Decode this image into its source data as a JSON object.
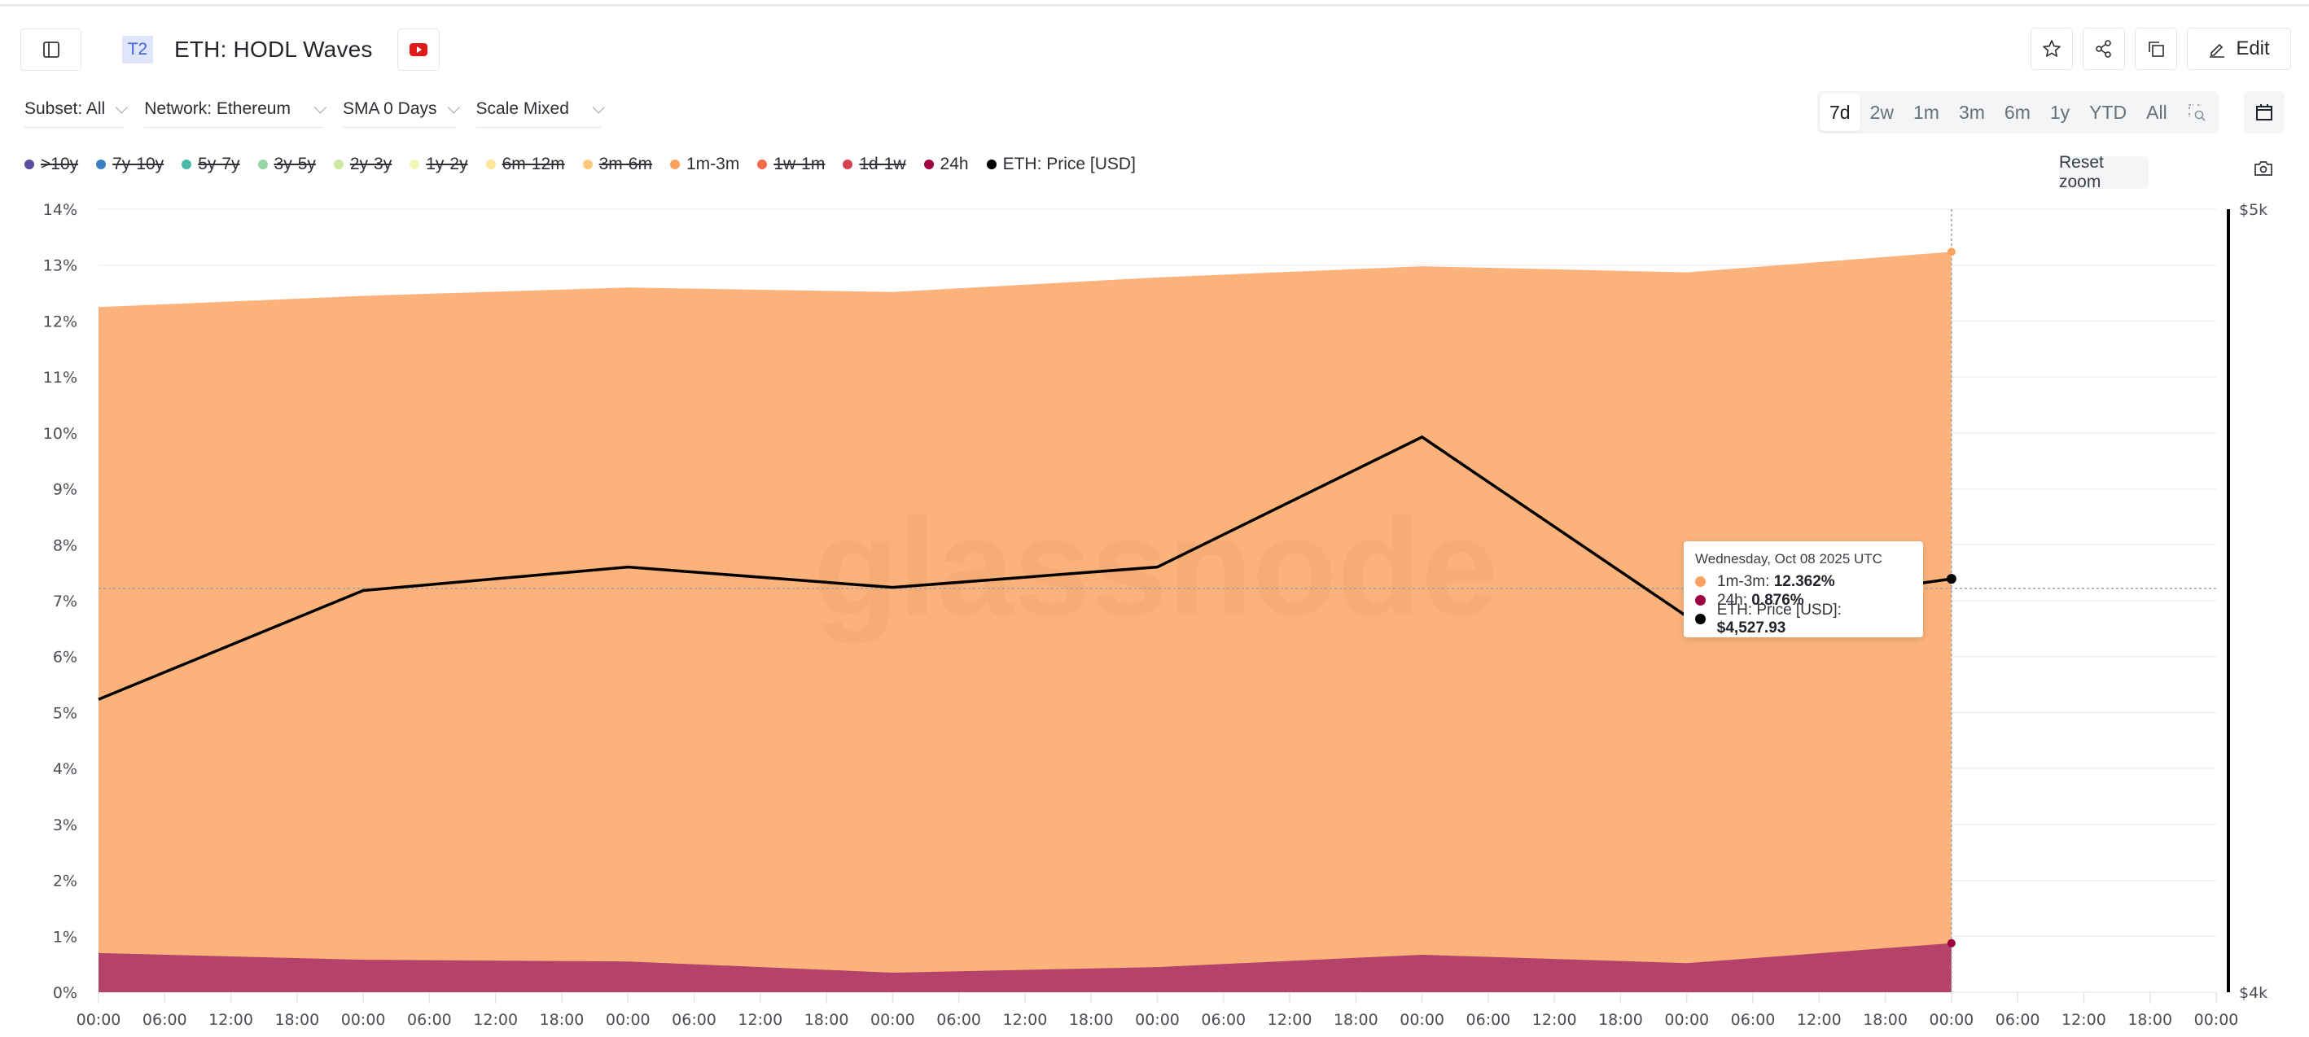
{
  "header": {
    "tier_badge": "T2",
    "title": "ETH: HODL Waves",
    "edit_label": "Edit"
  },
  "filters": [
    {
      "label": "Subset: All"
    },
    {
      "label": "Network: Ethereum"
    },
    {
      "label": "SMA 0 Days"
    },
    {
      "label": "Scale Mixed"
    }
  ],
  "range_options": [
    {
      "label": "7d",
      "active": true
    },
    {
      "label": "2w",
      "active": false
    },
    {
      "label": "1m",
      "active": false
    },
    {
      "label": "3m",
      "active": false
    },
    {
      "label": "6m",
      "active": false
    },
    {
      "label": "1y",
      "active": false
    },
    {
      "label": "YTD",
      "active": false
    },
    {
      "label": "All",
      "active": false
    }
  ],
  "legend": [
    {
      "label": ">10y",
      "color": "#5b4ea0",
      "enabled": false
    },
    {
      "label": "7y-10y",
      "color": "#3a7fc1",
      "enabled": false
    },
    {
      "label": "5y-7y",
      "color": "#4bb8a9",
      "enabled": false
    },
    {
      "label": "3y-5y",
      "color": "#98d5a4",
      "enabled": false
    },
    {
      "label": "2y-3y",
      "color": "#cbe89c",
      "enabled": false
    },
    {
      "label": "1y-2y",
      "color": "#f2f7b6",
      "enabled": false
    },
    {
      "label": "6m-12m",
      "color": "#fbe89a",
      "enabled": false
    },
    {
      "label": "3m-6m",
      "color": "#fcc97a",
      "enabled": false
    },
    {
      "label": "1m-3m",
      "color": "#fca261",
      "enabled": true
    },
    {
      "label": "1w-1m",
      "color": "#f26b4a",
      "enabled": false
    },
    {
      "label": "1d-1w",
      "color": "#d8404f",
      "enabled": false
    },
    {
      "label": "24h",
      "color": "#9e0142",
      "enabled": true
    },
    {
      "label": "ETH: Price [USD]",
      "color": "#000000",
      "enabled": true
    }
  ],
  "reset_zoom_label": "Reset zoom",
  "watermark": "glassnode",
  "tooltip": {
    "date": "Wednesday, Oct 08 2025 UTC",
    "rows": [
      {
        "label": "1m-3m: ",
        "value": "12.362%",
        "color": "#fca261"
      },
      {
        "label": "24h: ",
        "value": "0.876%",
        "color": "#9e0142"
      },
      {
        "label": "ETH: Price [USD]: ",
        "value": "$4,527.93",
        "color": "#000000"
      }
    ]
  },
  "chart_data": {
    "type": "area",
    "title": "ETH: HODL Waves",
    "stacked": true,
    "x": [
      "Oct 01 00:00",
      "Oct 02 00:00",
      "Oct 03 00:00",
      "Oct 04 00:00",
      "Oct 05 00:00",
      "Oct 06 00:00",
      "Oct 07 00:00",
      "Oct 08 00:00"
    ],
    "series": [
      {
        "name": "24h",
        "color": "#b5426a",
        "axis": "left",
        "values": [
          0.7,
          0.58,
          0.55,
          0.35,
          0.45,
          0.67,
          0.52,
          0.876
        ]
      },
      {
        "name": "1m-3m",
        "color": "#fbb27b",
        "axis": "left",
        "values": [
          11.55,
          11.87,
          12.05,
          12.17,
          12.33,
          12.31,
          12.35,
          12.362
        ]
      },
      {
        "name": "ETH: Price [USD]",
        "color": "#000000",
        "axis": "right",
        "type": "line",
        "values": [
          4374,
          4513,
          4543,
          4517,
          4543,
          4709,
          4480,
          4527.93
        ]
      }
    ],
    "y_left": {
      "min": 0,
      "max": 14,
      "ticks": [
        "0%",
        "1%",
        "2%",
        "3%",
        "4%",
        "5%",
        "6%",
        "7%",
        "8%",
        "9%",
        "10%",
        "11%",
        "12%",
        "13%",
        "14%"
      ]
    },
    "y_right": {
      "min": 4000,
      "max": 5000,
      "ticks": [
        "$4k",
        "$5k"
      ]
    },
    "x_ticks": [
      "00:00",
      "06:00",
      "12:00",
      "18:00",
      "00:00",
      "06:00",
      "12:00",
      "18:00",
      "00:00",
      "06:00",
      "12:00",
      "18:00",
      "00:00",
      "06:00",
      "12:00",
      "18:00",
      "00:00",
      "06:00",
      "12:00",
      "18:00",
      "00:00",
      "06:00",
      "12:00",
      "18:00",
      "00:00",
      "06:00",
      "12:00",
      "18:00",
      "00:00",
      "06:00",
      "12:00",
      "18:00",
      "00:00"
    ],
    "crosshair_price_level": 7.22,
    "grid": true,
    "legend_position": "top"
  }
}
